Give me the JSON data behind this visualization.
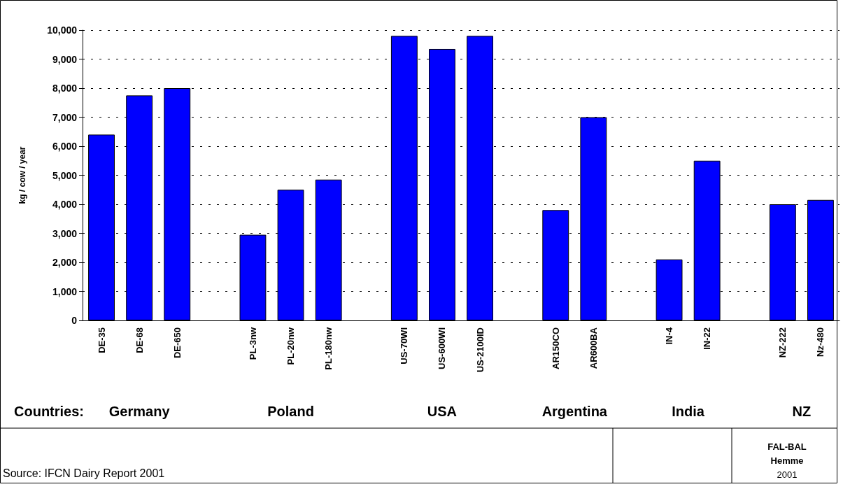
{
  "chart_data": {
    "type": "bar",
    "ylabel": "kg / cow / year",
    "categories": [
      "DE-35",
      "DE-68",
      "DE-650",
      null,
      "PL-3nw",
      "PL-20nw",
      "PL-180nw",
      null,
      "US-70WI",
      "US-600WI",
      "US-2100ID",
      null,
      "AR150CO",
      "AR600BA",
      null,
      "IN-4",
      "IN-22",
      null,
      "NZ-222",
      "Nz-480"
    ],
    "values": [
      6400,
      7750,
      8000,
      null,
      2950,
      4500,
      4850,
      null,
      9800,
      9350,
      9800,
      null,
      3800,
      7000,
      null,
      2100,
      5500,
      null,
      4000,
      4150
    ],
    "color": "#0000ff",
    "ylim": [
      0,
      10000
    ],
    "yticks": [
      0,
      {
        "value": 1000,
        "label": "1,000"
      },
      {
        "value": 2000,
        "label": "2,000"
      },
      {
        "value": 3000,
        "label": "3,000"
      },
      {
        "value": 4000,
        "label": "4,000"
      },
      {
        "value": 5000,
        "label": "5,000"
      },
      {
        "value": 6000,
        "label": "6,000"
      },
      {
        "value": 7000,
        "label": "7,000"
      },
      {
        "value": 8000,
        "label": "8,000"
      },
      {
        "value": 9000,
        "label": "9,000"
      },
      {
        "value": 10000,
        "label": "10,000"
      }
    ],
    "grid": "y",
    "annotations": [
      "Countries:",
      "Germany",
      "Poland",
      "USA",
      "Argentina",
      "India",
      "NZ",
      "Source: IFCN Dairy Report 2001",
      "FAL-BAL",
      "Hemme",
      "2001"
    ]
  }
}
